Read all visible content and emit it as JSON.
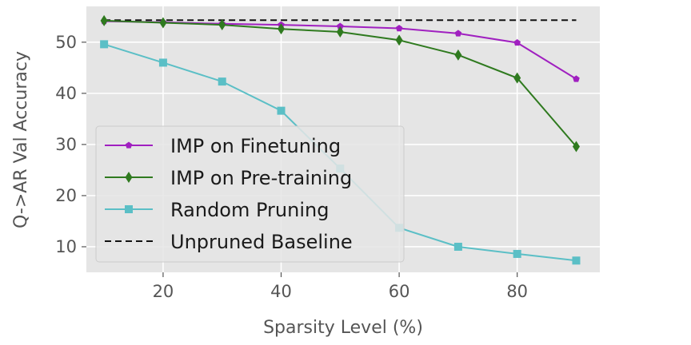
{
  "chart_data": {
    "type": "line",
    "title": "",
    "xlabel": "Sparsity Level (%)",
    "ylabel": "Q->AR Val Accuracy",
    "xlim": [
      7,
      94
    ],
    "ylim": [
      5,
      57
    ],
    "xticks": [
      20,
      40,
      60,
      80
    ],
    "yticks": [
      10,
      20,
      30,
      40,
      50
    ],
    "grid": true,
    "legend_position": "lower-left",
    "x": [
      10,
      20,
      30,
      40,
      50,
      60,
      70,
      80,
      90
    ],
    "series": [
      {
        "name": "IMP on Finetuning",
        "color": "#a020c0",
        "marker": "pentagon",
        "linestyle": "solid",
        "values": [
          54.1,
          53.9,
          53.6,
          53.4,
          53.1,
          52.7,
          51.7,
          49.9,
          42.8
        ]
      },
      {
        "name": "IMP on Pre-training",
        "color": "#2f7a1f",
        "marker": "diamond",
        "linestyle": "solid",
        "values": [
          54.2,
          53.8,
          53.4,
          52.6,
          52.0,
          50.4,
          47.5,
          43.0,
          29.6
        ]
      },
      {
        "name": "Random Pruning",
        "color": "#5bbfc6",
        "marker": "square",
        "linestyle": "solid",
        "values": [
          49.6,
          46.0,
          42.3,
          36.6,
          25.3,
          13.7,
          10.0,
          8.6,
          7.3
        ]
      },
      {
        "name": "Unpruned Baseline",
        "color": "#111111",
        "marker": "none",
        "linestyle": "dashed",
        "values": [
          54.3,
          54.3,
          54.3,
          54.3,
          54.3,
          54.3,
          54.3,
          54.3,
          54.3
        ]
      }
    ]
  }
}
